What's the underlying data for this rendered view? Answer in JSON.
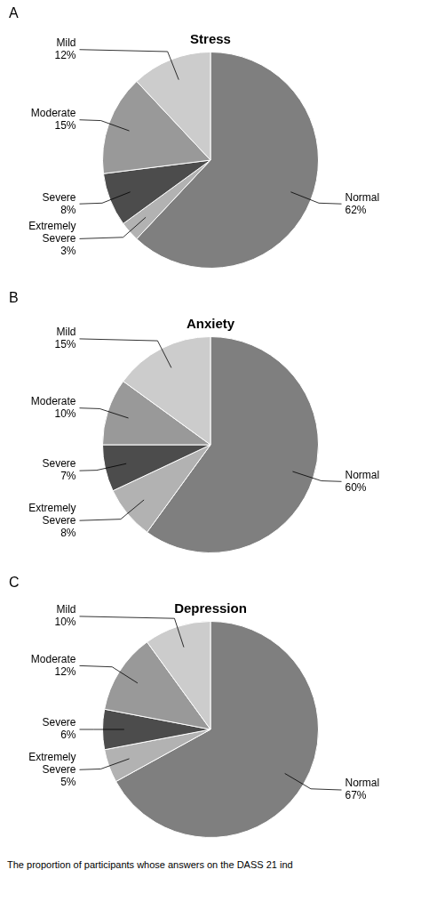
{
  "chart_data": [
    {
      "type": "pie",
      "title": "Stress",
      "annotations": [
        "A"
      ],
      "categories": [
        "Normal",
        "Extremely\nSevere",
        "Severe",
        "Moderate",
        "Mild"
      ],
      "values": [
        62,
        3,
        8,
        15,
        12
      ],
      "value_labels": [
        "62%",
        "3%",
        "8%",
        "15%",
        "12%"
      ],
      "colors": [
        "#7f7f7f",
        "#b2b2b2",
        "#4c4c4c",
        "#999999",
        "#cccccc"
      ],
      "data_labels": true
    },
    {
      "type": "pie",
      "title": "Anxiety",
      "annotations": [
        "B"
      ],
      "categories": [
        "Normal",
        "Extremely\nSevere",
        "Severe",
        "Moderate",
        "Mild"
      ],
      "values": [
        60,
        8,
        7,
        10,
        15
      ],
      "value_labels": [
        "60%",
        "8%",
        "7%",
        "10%",
        "15%"
      ],
      "colors": [
        "#7f7f7f",
        "#b2b2b2",
        "#4c4c4c",
        "#999999",
        "#cccccc"
      ],
      "data_labels": true
    },
    {
      "type": "pie",
      "title": "Depression",
      "annotations": [
        "C"
      ],
      "categories": [
        "Normal",
        "Extremely\nSevere",
        "Severe",
        "Moderate",
        "Mild"
      ],
      "values": [
        67,
        5,
        6,
        12,
        10
      ],
      "value_labels": [
        "67%",
        "5%",
        "6%",
        "12%",
        "10%"
      ],
      "colors": [
        "#7f7f7f",
        "#b2b2b2",
        "#4c4c4c",
        "#999999",
        "#cccccc"
      ],
      "data_labels": true
    }
  ],
  "footnote": "The proportion of participants whose answers on the DASS 21 ind"
}
